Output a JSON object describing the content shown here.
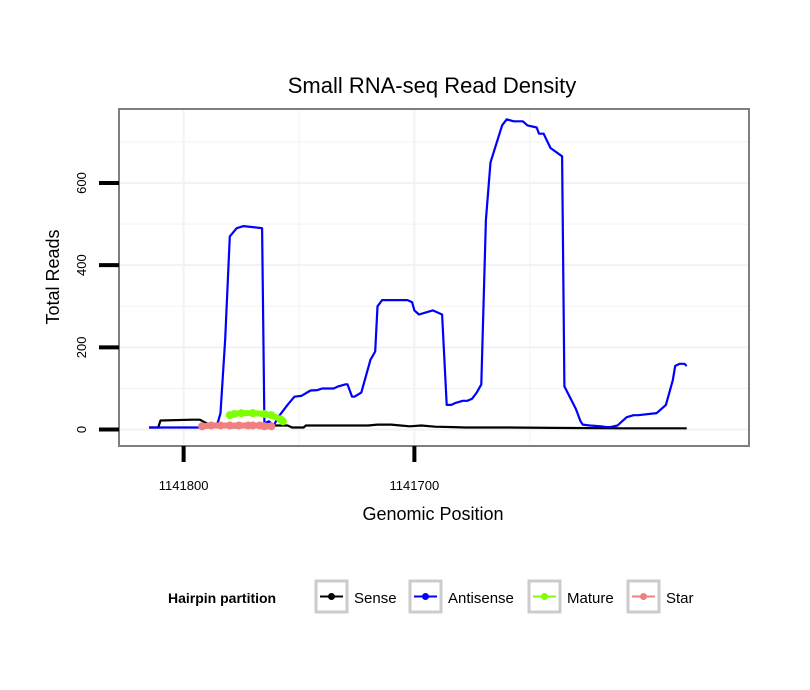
{
  "chart_data": {
    "type": "line",
    "title": "Small RNA-seq Read Density",
    "xlabel": "Genomic Position",
    "ylabel": "Total Reads",
    "x_reversed": true,
    "xlim": [
      1141828,
      1141555
    ],
    "ylim": [
      -40,
      780
    ],
    "x_ticks": [
      1141800,
      1141700
    ],
    "x_tick_labels": [
      "1141800",
      "1141700"
    ],
    "y_ticks": [
      0,
      200,
      400,
      600
    ],
    "y_tick_labels": [
      "0",
      "200",
      "400",
      "600"
    ],
    "grid": true,
    "legend": {
      "title": "Hairpin partition",
      "placement": "bottom",
      "entries": [
        "Sense",
        "Antisense",
        "Mature",
        "Star"
      ]
    },
    "colors": {
      "Sense": "#000000",
      "Antisense": "#0000ff",
      "Mature": "#7fff00",
      "Star": "#f08080",
      "panel_border": "#7f7f7f",
      "grid": "#f2f2f2"
    },
    "series": [
      {
        "name": "Sense",
        "x": [
          1141815,
          1141811,
          1141810,
          1141796,
          1141793,
          1141790,
          1141780,
          1141775,
          1141774,
          1141766,
          1141764,
          1141755,
          1141753,
          1141748,
          1141747,
          1141720,
          1141716,
          1141710,
          1141706,
          1141702,
          1141697,
          1141691,
          1141683,
          1141678,
          1141660,
          1141640,
          1141610,
          1141582
        ],
        "y": [
          5,
          5,
          22,
          24,
          24,
          15,
          5,
          5,
          12,
          12,
          10,
          10,
          5,
          5,
          10,
          10,
          12,
          12,
          10,
          8,
          10,
          7,
          6,
          5,
          5,
          4,
          3,
          3
        ]
      },
      {
        "name": "Antisense",
        "x": [
          1141815,
          1141810,
          1141790,
          1141786,
          1141785,
          1141784,
          1141782,
          1141780,
          1141777,
          1141774,
          1141766,
          1141765,
          1141763,
          1141761,
          1141759,
          1141755,
          1141752,
          1141749,
          1141745,
          1141742,
          1141740,
          1141735,
          1141733,
          1141730,
          1141729,
          1141727,
          1141726,
          1141723,
          1141719,
          1141717,
          1141716,
          1141714,
          1141712,
          1141710,
          1141709,
          1141703,
          1141701,
          1141700,
          1141698,
          1141695,
          1141692,
          1141688,
          1141686,
          1141684,
          1141682,
          1141679,
          1141677,
          1141675,
          1141673,
          1141671,
          1141669,
          1141667,
          1141662,
          1141660,
          1141657,
          1141653,
          1141651,
          1141647,
          1141646,
          1141644,
          1141641,
          1141636,
          1141635,
          1141630,
          1141628,
          1141627,
          1141624,
          1141619,
          1141617,
          1141615,
          1141612,
          1141610,
          1141608,
          1141605,
          1141603,
          1141595,
          1141591,
          1141590,
          1141588,
          1141587,
          1141585,
          1141583,
          1141582
        ],
        "y": [
          5,
          5,
          5,
          8,
          20,
          40,
          220,
          470,
          490,
          495,
          490,
          15,
          20,
          10,
          30,
          60,
          80,
          82,
          95,
          96,
          100,
          100,
          105,
          110,
          110,
          80,
          80,
          90,
          170,
          190,
          300,
          315,
          315,
          315,
          315,
          315,
          310,
          290,
          280,
          285,
          290,
          280,
          60,
          60,
          65,
          70,
          70,
          75,
          90,
          110,
          510,
          650,
          740,
          755,
          750,
          750,
          740,
          735,
          720,
          720,
          685,
          665,
          105,
          50,
          20,
          12,
          10,
          8,
          6,
          6,
          10,
          20,
          30,
          35,
          35,
          40,
          60,
          80,
          120,
          155,
          160,
          160,
          155
        ]
      },
      {
        "name": "Mature",
        "x": [
          1141780,
          1141778,
          1141775,
          1141770,
          1141765,
          1141762,
          1141758,
          1141757
        ],
        "y": [
          35,
          38,
          40,
          40,
          38,
          35,
          25,
          20
        ]
      },
      {
        "name": "Star",
        "x": [
          1141792,
          1141788,
          1141784,
          1141780,
          1141776,
          1141772,
          1141770,
          1141767,
          1141765,
          1141762
        ],
        "y": [
          8,
          10,
          10,
          10,
          10,
          10,
          10,
          10,
          8,
          8
        ]
      }
    ]
  }
}
